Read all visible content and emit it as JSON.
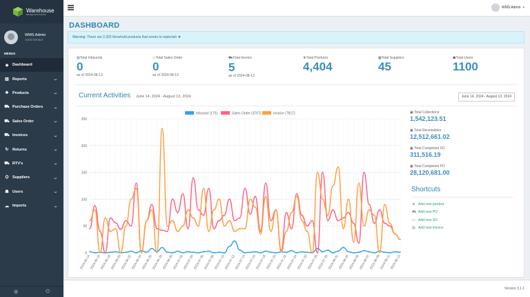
{
  "sidebar": {
    "logo": {
      "title": "Warehouse",
      "subtitle": "Management Solution"
    },
    "user": {
      "name": "WMS Admin",
      "role": "Administrator"
    },
    "menu_label": "MENUS",
    "items": [
      {
        "label": "Dashboard",
        "icon": "dashboard-icon",
        "glyph": "◈",
        "chevron": false
      },
      {
        "label": "Reports",
        "icon": "bar-chart-icon",
        "glyph": "▥",
        "chevron": true
      },
      {
        "label": "Products",
        "icon": "cubes-icon",
        "glyph": "❖",
        "chevron": true
      },
      {
        "label": "Purchase Orders",
        "icon": "cart-icon",
        "glyph": "⛟",
        "chevron": true
      },
      {
        "label": "Sales Order",
        "icon": "truck-icon",
        "glyph": "⛟",
        "chevron": true
      },
      {
        "label": "Invoices",
        "icon": "truck-icon",
        "glyph": "⛟",
        "chevron": true
      },
      {
        "label": "Returns",
        "icon": "return-icon",
        "glyph": "↻",
        "chevron": true
      },
      {
        "label": "RTV's",
        "icon": "truck-icon",
        "glyph": "⛟",
        "chevron": true
      },
      {
        "label": "Suppliers",
        "icon": "handshake-icon",
        "glyph": "⛭",
        "chevron": true
      },
      {
        "label": "Users",
        "icon": "users-icon",
        "glyph": "☗",
        "chevron": true
      },
      {
        "label": "Imports",
        "icon": "cloud-upload-icon",
        "glyph": "☁",
        "chevron": true
      }
    ],
    "footer_icons": [
      "gear-icon",
      "power-icon"
    ]
  },
  "topbar": {
    "user_name": "WMS Admin"
  },
  "page": {
    "title": "DASHBOARD",
    "alert": "Warning: There are 2,302 threshold products that needs to replenish"
  },
  "stats": [
    {
      "label": "Total Inbounds",
      "icon": "inbox-icon",
      "glyph": "▤",
      "value": "0",
      "date": "as of 2024-08-13"
    },
    {
      "label": "Total Sales Order",
      "icon": "file-icon",
      "glyph": "▭",
      "value": "0",
      "date": "as of 2024-08-13"
    },
    {
      "label": "Total Invoice",
      "icon": "truck-icon",
      "glyph": "⛟",
      "value": "5",
      "date": "as of 2024-08-13"
    },
    {
      "label": "Total Products",
      "icon": "cubes-icon",
      "glyph": "❖",
      "value": "4,404",
      "date": ""
    },
    {
      "label": "Total Suppliers",
      "icon": "building-icon",
      "glyph": "▦",
      "value": "45",
      "date": ""
    },
    {
      "label": "Total Users",
      "icon": "user-icon",
      "glyph": "☗",
      "value": "1100",
      "date": ""
    }
  ],
  "activities": {
    "title": "Current Activities",
    "range": "June 14, 2024 - August 13, 2024",
    "daterange_button": "June 14, 2024 - August 13, 2024"
  },
  "right_stats": [
    {
      "label": "Total Collections",
      "value": "1,542,123.51"
    },
    {
      "label": "Total Receivables",
      "value": "12,512,661.02"
    },
    {
      "label": "Total Completed SO",
      "value": "311,516.19"
    },
    {
      "label": "Total Completed PO",
      "value": "28,120,681.00"
    }
  ],
  "shortcuts": {
    "title": "Shortcuts",
    "items": [
      {
        "label": "Add new product",
        "icon": "cubes-icon",
        "glyph": "❖"
      },
      {
        "label": "Add new PO",
        "icon": "cart-icon",
        "glyph": "⛟"
      },
      {
        "label": "Add new SO",
        "icon": "folder-icon",
        "glyph": "▭"
      },
      {
        "label": "Add new invoice",
        "icon": "file-icon",
        "glyph": "▤"
      }
    ]
  },
  "footer": {
    "version": "Version 3.1.1"
  },
  "colors": {
    "accent": "#3c8dbc",
    "inbound": "#36a2eb",
    "sales": "#ff6384",
    "invoice": "#ff9f40",
    "sidebar": "#2c3b4a"
  },
  "chart_data": {
    "type": "line",
    "x": [
      "2024-06-14",
      "2024-06-15",
      "2024-06-16",
      "2024-06-17",
      "2024-06-18",
      "2024-06-19",
      "2024-06-20",
      "2024-06-21",
      "2024-06-22",
      "2024-06-23",
      "2024-06-24",
      "2024-06-25",
      "2024-06-26",
      "2024-06-27",
      "2024-06-28",
      "2024-06-29",
      "2024-06-30",
      "2024-07-01",
      "2024-07-02",
      "2024-07-03",
      "2024-07-04",
      "2024-07-05",
      "2024-07-06",
      "2024-07-07",
      "2024-07-08",
      "2024-07-09",
      "2024-07-10",
      "2024-07-11",
      "2024-07-12",
      "2024-07-13",
      "2024-07-14",
      "2024-07-15",
      "2024-07-16",
      "2024-07-17",
      "2024-07-18",
      "2024-07-19",
      "2024-07-20",
      "2024-07-21",
      "2024-07-22",
      "2024-07-23",
      "2024-07-24",
      "2024-07-25",
      "2024-07-26",
      "2024-07-27",
      "2024-07-28",
      "2024-07-29",
      "2024-07-30",
      "2024-07-31",
      "2024-08-01",
      "2024-08-02",
      "2024-08-03",
      "2024-08-04",
      "2024-08-05",
      "2024-08-06",
      "2024-08-07",
      "2024-08-08",
      "2024-08-09",
      "2024-08-10",
      "2024-08-11",
      "2024-08-12",
      "2024-08-13"
    ],
    "tick_labels": [
      "2024-06-14",
      "2024-06-16",
      "2024-06-18",
      "2024-06-20",
      "2024-06-22",
      "2024-06-24",
      "2024-06-26",
      "2024-06-28",
      "2024-06-30",
      "2024-07-02",
      "2024-07-04",
      "2024-07-06",
      "2024-07-08",
      "2024-07-10",
      "2024-07-12",
      "2024-07-14",
      "2024-07-16",
      "2024-07-18",
      "2024-07-20",
      "2024-07-22",
      "2024-07-24",
      "2024-07-26",
      "2024-07-28",
      "2024-07-30",
      "2024-08-01",
      "2024-08-03",
      "2024-08-05",
      "2024-08-07",
      "2024-08-09",
      "2024-08-11",
      "2024-08-13"
    ],
    "series": [
      {
        "name": "Inbound (175)",
        "color": "#36a2eb",
        "values": [
          2,
          0,
          1,
          0,
          1,
          2,
          0,
          1,
          3,
          0,
          4,
          1,
          8,
          2,
          10,
          1,
          0,
          3,
          0,
          2,
          1,
          0,
          2,
          3,
          0,
          1,
          0,
          12,
          22,
          5,
          0,
          1,
          2,
          0,
          3,
          1,
          0,
          2,
          1,
          4,
          0,
          2,
          1,
          0,
          8,
          2,
          5,
          0,
          3,
          10,
          2,
          0,
          1,
          4,
          2,
          0,
          3,
          1,
          0,
          2,
          1
        ]
      },
      {
        "name": "Sales Order (3707)",
        "color": "#ff6384",
        "values": [
          45,
          88,
          40,
          0,
          65,
          56,
          44,
          60,
          50,
          130,
          0,
          60,
          90,
          45,
          42,
          40,
          100,
          75,
          110,
          45,
          140,
          80,
          70,
          120,
          45,
          60,
          70,
          100,
          60,
          65,
          120,
          72,
          105,
          40,
          130,
          60,
          80,
          5,
          75,
          45,
          110,
          70,
          50,
          60,
          0,
          150,
          60,
          80,
          60,
          65,
          75,
          55,
          18,
          150,
          90,
          55,
          80,
          55,
          50,
          35,
          25
        ]
      },
      {
        "name": "Invoice (7817)",
        "color": "#ff9f40",
        "values": [
          60,
          80,
          0,
          65,
          40,
          45,
          0,
          50,
          100,
          120,
          0,
          60,
          80,
          0,
          232,
          50,
          60,
          40,
          50,
          80,
          65,
          50,
          120,
          40,
          80,
          100,
          50,
          60,
          40,
          45,
          45,
          100,
          85,
          35,
          105,
          40,
          80,
          2,
          40,
          75,
          105,
          60,
          40,
          0,
          150,
          100,
          70,
          125,
          160,
          45,
          100,
          20,
          130,
          50,
          80,
          70,
          0,
          90,
          55,
          35,
          25
        ]
      }
    ],
    "ylim": [
      0,
      250
    ],
    "yticks": [
      0,
      50,
      100,
      150,
      200,
      250
    ],
    "grid": true,
    "legend": "top-center"
  }
}
